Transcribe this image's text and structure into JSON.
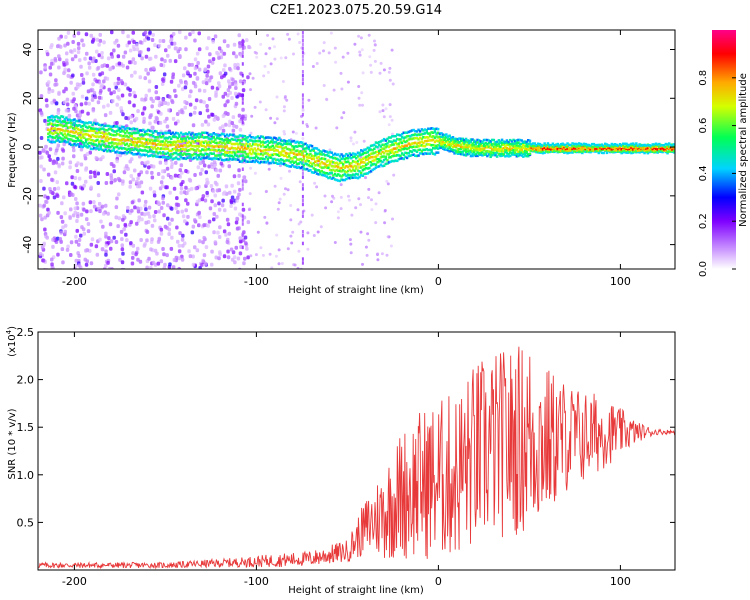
{
  "title": "C2E1.2023.075.20.59.G14",
  "chart_data": [
    {
      "type": "heatmap",
      "xlabel": "Height of straight line (km)",
      "ylabel": "Frequency (Hz)",
      "xlim": [
        -220,
        130
      ],
      "ylim": [
        -50,
        48
      ],
      "xticks": [
        -200,
        -100,
        0,
        100
      ],
      "yticks": [
        -40,
        -20,
        0,
        20,
        40
      ],
      "colorbar": {
        "label": "Normalized spectral amplitude",
        "range": [
          0.0,
          1.0
        ],
        "ticks": [
          0.0,
          0.2,
          0.4,
          0.6,
          0.8
        ],
        "tick_labels": [
          "0.0",
          "0.2",
          "0.4",
          "0.6",
          "0.8"
        ],
        "colormap": [
          "#ffffff",
          "#7f00ff",
          "#0000ff",
          "#00d4ff",
          "#00ff55",
          "#d4ff00",
          "#ffaa00",
          "#ff0000",
          "#ff0088"
        ]
      },
      "ridge_frequency": {
        "x": [
          -210,
          -190,
          -170,
          -150,
          -130,
          -110,
          -90,
          -75,
          -65,
          -55,
          -45,
          -35,
          -25,
          -15,
          -5,
          0,
          10,
          20,
          30,
          40,
          50,
          70,
          90,
          110,
          130
        ],
        "y": [
          8,
          5,
          3,
          1,
          1,
          0,
          -1,
          -3,
          -6,
          -8,
          -7,
          -3,
          0,
          2,
          3,
          3,
          1,
          0,
          0,
          0,
          0,
          0,
          0,
          0,
          0
        ]
      }
    },
    {
      "type": "line",
      "xlabel": "Height of straight line (km)",
      "ylabel": "SNR (10 * v/v)",
      "y_scale_label": "(x10",
      "y_scale_exponent": "4",
      "y_scale_suffix": ")",
      "xlim": [
        -220,
        130
      ],
      "ylim": [
        0,
        2.5
      ],
      "xticks": [
        -200,
        -100,
        0,
        100
      ],
      "yticks": [
        0.5,
        1.0,
        1.5,
        2.0,
        2.5
      ],
      "ytick_labels": [
        "0.5",
        "1.0",
        "1.5",
        "2.0",
        "2.5"
      ],
      "series": [
        {
          "color": "#e8393a",
          "envelope": {
            "x": [
              -220,
              -150,
              -110,
              -90,
              -70,
              -50,
              -40,
              -30,
              -20,
              -10,
              0,
              10,
              20,
              30,
              40,
              50,
              60,
              70,
              80,
              90,
              100,
              110,
              120,
              130
            ],
            "mean": [
              0.05,
              0.05,
              0.08,
              0.1,
              0.12,
              0.2,
              0.45,
              0.6,
              0.8,
              0.9,
              0.95,
              1.0,
              1.2,
              1.3,
              1.35,
              1.4,
              1.35,
              1.4,
              1.4,
              1.45,
              1.45,
              1.45,
              1.45,
              1.45
            ],
            "amp": [
              0.03,
              0.03,
              0.05,
              0.07,
              0.08,
              0.12,
              0.3,
              0.5,
              0.7,
              0.8,
              0.85,
              0.9,
              1.0,
              1.0,
              1.0,
              1.05,
              0.8,
              0.6,
              0.5,
              0.4,
              0.25,
              0.1,
              0.03,
              0.02
            ]
          }
        }
      ]
    }
  ]
}
